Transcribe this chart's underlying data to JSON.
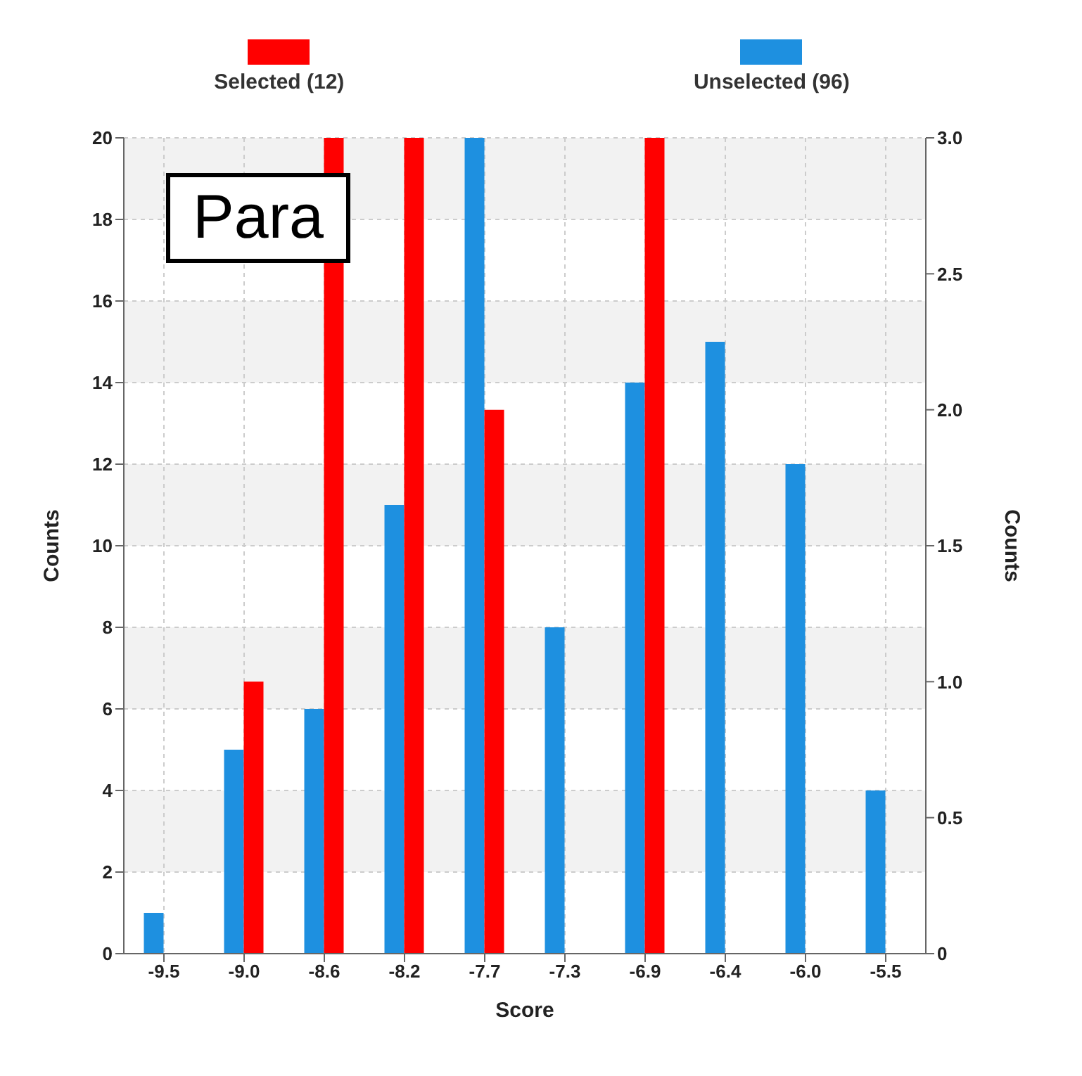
{
  "chart_data": {
    "type": "bar",
    "xlabel": "Score",
    "ylabel": "Counts",
    "y2label": "Counts",
    "categories": [
      "-9.5",
      "-9.0",
      "-8.6",
      "-8.2",
      "-7.7",
      "-7.3",
      "-6.9",
      "-6.4",
      "-6.0",
      "-5.5"
    ],
    "series": [
      {
        "name": "Unselected (96)",
        "color": "#1e90e0",
        "values": [
          1,
          5,
          6,
          11,
          20,
          8,
          14,
          15,
          12,
          4
        ]
      },
      {
        "name": "Selected (12)",
        "color": "#ff0000",
        "axis": "y2",
        "values": [
          0,
          1,
          3,
          3,
          2,
          0,
          3,
          0,
          0,
          0
        ]
      }
    ],
    "ylim": [
      0,
      20
    ],
    "yticks": [
      0,
      2,
      4,
      6,
      8,
      10,
      12,
      14,
      16,
      18,
      20
    ],
    "y2lim": [
      0,
      3
    ],
    "y2ticks": [
      0,
      {
        "value": 0.5,
        "label": "0.5"
      },
      {
        "value": 1,
        "label": "1.0"
      },
      {
        "value": 1.5,
        "label": "1.5"
      },
      {
        "value": 2,
        "label": "2.0"
      },
      {
        "value": 2.5,
        "label": "2.5"
      },
      {
        "value": 3,
        "label": "3.0"
      }
    ],
    "grid": true,
    "legend": "top",
    "annotations": [
      "Para"
    ]
  }
}
